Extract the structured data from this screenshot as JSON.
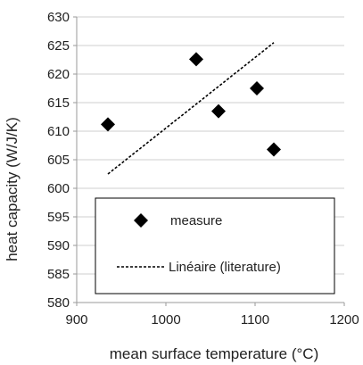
{
  "chart_data": {
    "type": "scatter",
    "title": "",
    "xlabel": "mean surface temperature (°C)",
    "ylabel": "heat capacity (W/J/K)",
    "xlim": [
      900,
      1200
    ],
    "ylim": [
      580,
      630
    ],
    "xticks": [
      900,
      1000,
      1100,
      1200
    ],
    "yticks": [
      580,
      585,
      590,
      595,
      600,
      605,
      610,
      615,
      620,
      625,
      630
    ],
    "grid": "horizontal",
    "legend_position": "bottom-center",
    "series": [
      {
        "name": "measure",
        "marker": "diamond",
        "color": "#000000",
        "points": [
          {
            "x": 935,
            "y": 611.2
          },
          {
            "x": 1034,
            "y": 622.6
          },
          {
            "x": 1059,
            "y": 613.5
          },
          {
            "x": 1102,
            "y": 617.5
          },
          {
            "x": 1121,
            "y": 606.8
          }
        ]
      },
      {
        "name": "Linéaire (literature)",
        "style": "dashed-line",
        "color": "#000000",
        "points": [
          {
            "x": 935,
            "y": 602.5
          },
          {
            "x": 1121,
            "y": 625.5
          }
        ]
      }
    ]
  }
}
